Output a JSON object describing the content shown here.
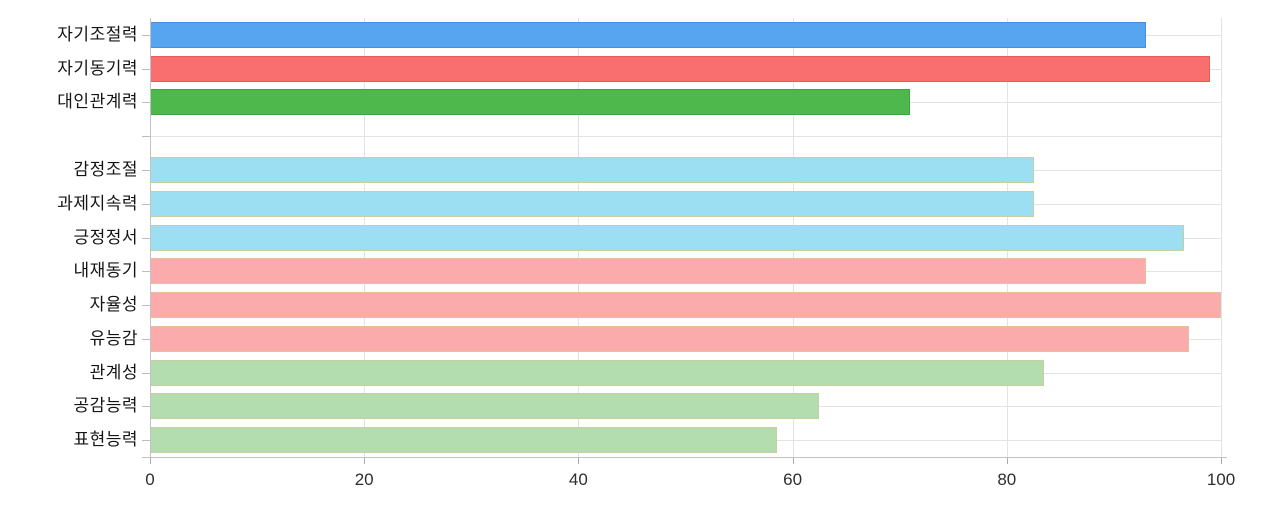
{
  "chart_data": {
    "type": "bar",
    "orientation": "horizontal",
    "title": "",
    "xlabel": "",
    "ylabel": "",
    "xlim": [
      0,
      100
    ],
    "x_ticks": [
      "0",
      "20",
      "40",
      "60",
      "80",
      "100"
    ],
    "x_tick_values": [
      0,
      20,
      40,
      60,
      80,
      100
    ],
    "grid": true,
    "legend_position": "none",
    "rows": [
      {
        "label": "자기조절력",
        "value": 93,
        "fill": "#57a4f1",
        "border": "#4690dd"
      },
      {
        "label": "자기동기력",
        "value": 99,
        "fill": "#f96e6e",
        "border": "#ea5a5b"
      },
      {
        "label": "대인관계력",
        "value": 71,
        "fill": "#4eb84d",
        "border": "#3fa53f"
      },
      {
        "label": "",
        "value": null,
        "fill": "",
        "border": ""
      },
      {
        "label": "감정조절",
        "value": 82.5,
        "fill": "#9cdff2",
        "border": "#c6cf9d"
      },
      {
        "label": "과제지속력",
        "value": 82.5,
        "fill": "#9cdff2",
        "border": "#c6cf9d"
      },
      {
        "label": "긍정정서",
        "value": 96.5,
        "fill": "#9cdff2",
        "border": "#c6cf9d"
      },
      {
        "label": "내재동기",
        "value": 93,
        "fill": "#fbabac",
        "border": "#e6bf9b"
      },
      {
        "label": "자율성",
        "value": 100,
        "fill": "#fbabac",
        "border": "#e6bf9b"
      },
      {
        "label": "유능감",
        "value": 97,
        "fill": "#fbabac",
        "border": "#e6bf9b"
      },
      {
        "label": "관계성",
        "value": 83.5,
        "fill": "#b3dcaf",
        "border": "#c6cf9d"
      },
      {
        "label": "공감능력",
        "value": 62.5,
        "fill": "#b3dcaf",
        "border": "#c6cf9d"
      },
      {
        "label": "표현능력",
        "value": 58.5,
        "fill": "#b3dcaf",
        "border": "#c6cf9d"
      }
    ],
    "colors": {
      "axis": "#c2c2c2",
      "gridline": "#e3e3e3",
      "category_tick": "#bdbdbd",
      "x_tick": "#ababab",
      "label_text": "#141414",
      "x_label_text": "#2e2e2e",
      "background": "#ffffff"
    }
  }
}
